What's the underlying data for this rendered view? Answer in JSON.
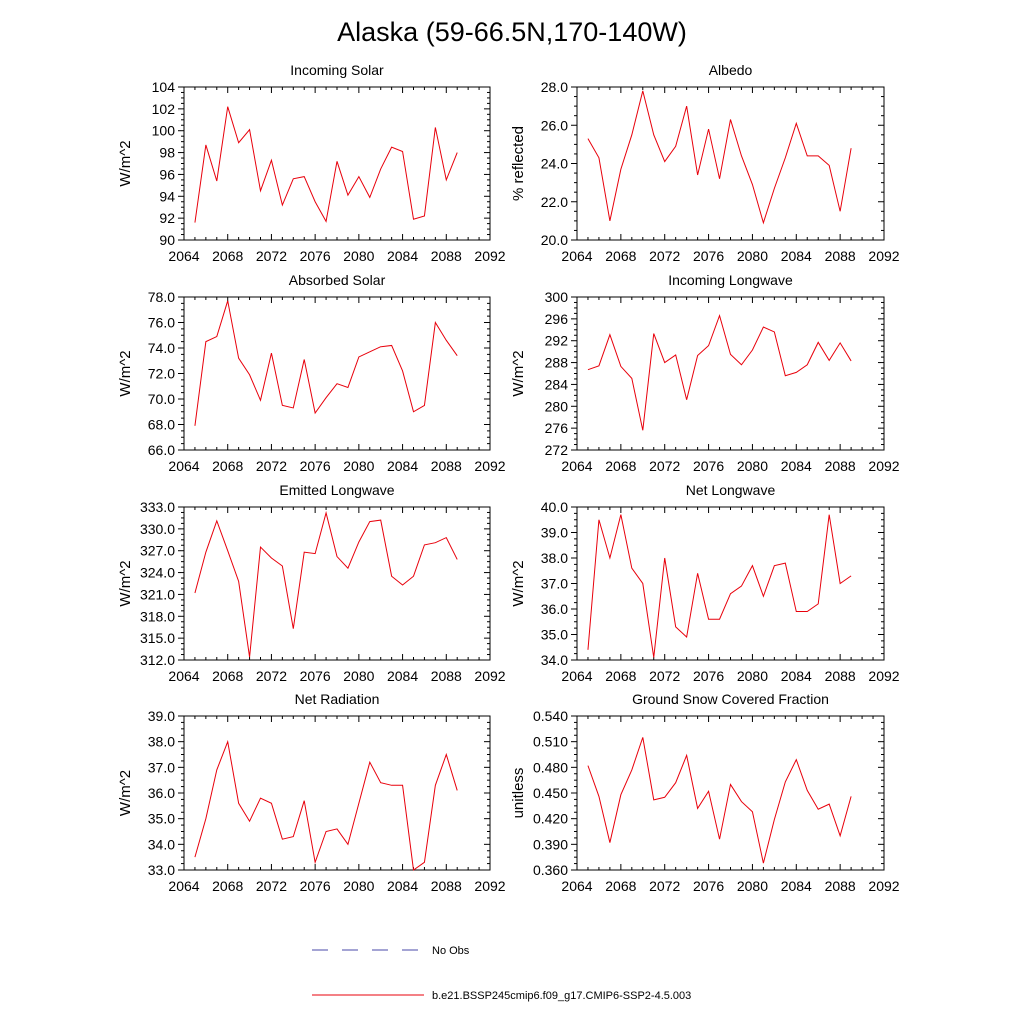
{
  "title": "Alaska (59-66.5N,170-140W)",
  "colors": {
    "series": "#e8000b",
    "obs": "#4a4aa8",
    "axis": "#000000"
  },
  "legend": [
    {
      "label": "No Obs",
      "style": "dashed",
      "color": "#4a4aa8"
    },
    {
      "label": "b.e21.BSSP245cmip6.f09_g17.CMIP6-SSP2-4.5.003",
      "style": "solid",
      "color": "#e8000b"
    }
  ],
  "chart_data": [
    {
      "type": "line",
      "title": "Incoming Solar",
      "ylabel": "W/m^2",
      "xlabel": "",
      "xlim": [
        2064,
        2092
      ],
      "xticks": [
        2064,
        2068,
        2072,
        2076,
        2080,
        2084,
        2088,
        2092
      ],
      "xtick_labels": [
        "2064",
        "2068",
        "2072",
        "2076",
        "2080",
        "2084",
        "2088",
        "2092"
      ],
      "ylim": [
        90,
        104
      ],
      "yticks": [
        90,
        92,
        94,
        96,
        98,
        100,
        102,
        104
      ],
      "ytick_labels": [
        "90",
        "92",
        "94",
        "96",
        "98",
        "100",
        "102",
        "104"
      ],
      "x": [
        2065,
        2066,
        2067,
        2068,
        2069,
        2070,
        2071,
        2072,
        2073,
        2074,
        2075,
        2076,
        2077,
        2078,
        2079,
        2080,
        2081,
        2082,
        2083,
        2084,
        2085,
        2086,
        2087,
        2088,
        2089
      ],
      "series": [
        {
          "name": "b.e21.BSSP245cmip6.f09_g17.CMIP6-SSP2-4.5.003",
          "values": [
            91.6,
            98.7,
            95.4,
            102.2,
            98.9,
            100.1,
            94.5,
            97.3,
            93.2,
            95.6,
            95.8,
            93.5,
            91.7,
            97.2,
            94.1,
            95.8,
            93.9,
            96.5,
            98.5,
            98.1,
            91.9,
            92.2,
            100.3,
            95.5,
            98.0
          ]
        }
      ]
    },
    {
      "type": "line",
      "title": "Albedo",
      "ylabel": "% reflected",
      "xlabel": "",
      "xlim": [
        2064,
        2092
      ],
      "xticks": [
        2064,
        2068,
        2072,
        2076,
        2080,
        2084,
        2088,
        2092
      ],
      "xtick_labels": [
        "2064",
        "2068",
        "2072",
        "2076",
        "2080",
        "2084",
        "2088",
        "2092"
      ],
      "ylim": [
        20,
        28
      ],
      "yticks": [
        20,
        22,
        24,
        26,
        28
      ],
      "ytick_labels": [
        "20.0",
        "22.0",
        "24.0",
        "26.0",
        "28.0"
      ],
      "x": [
        2065,
        2066,
        2067,
        2068,
        2069,
        2070,
        2071,
        2072,
        2073,
        2074,
        2075,
        2076,
        2077,
        2078,
        2079,
        2080,
        2081,
        2082,
        2083,
        2084,
        2085,
        2086,
        2087,
        2088,
        2089
      ],
      "series": [
        {
          "name": "b.e21.BSSP245cmip6.f09_g17.CMIP6-SSP2-4.5.003",
          "values": [
            25.3,
            24.3,
            21.0,
            23.7,
            25.5,
            27.8,
            25.5,
            24.1,
            24.9,
            27.0,
            23.4,
            25.8,
            23.2,
            26.3,
            24.4,
            22.9,
            20.9,
            22.7,
            24.3,
            26.1,
            24.4,
            24.4,
            23.9,
            21.5,
            24.8
          ]
        }
      ]
    },
    {
      "type": "line",
      "title": "Absorbed Solar",
      "ylabel": "W/m^2",
      "xlabel": "",
      "xlim": [
        2064,
        2092
      ],
      "xticks": [
        2064,
        2068,
        2072,
        2076,
        2080,
        2084,
        2088,
        2092
      ],
      "xtick_labels": [
        "2064",
        "2068",
        "2072",
        "2076",
        "2080",
        "2084",
        "2088",
        "2092"
      ],
      "ylim": [
        66,
        78
      ],
      "yticks": [
        66,
        68,
        70,
        72,
        74,
        76,
        78
      ],
      "ytick_labels": [
        "66.0",
        "68.0",
        "70.0",
        "72.0",
        "74.0",
        "76.0",
        "78.0"
      ],
      "x": [
        2065,
        2066,
        2067,
        2068,
        2069,
        2070,
        2071,
        2072,
        2073,
        2074,
        2075,
        2076,
        2077,
        2078,
        2079,
        2080,
        2081,
        2082,
        2083,
        2084,
        2085,
        2086,
        2087,
        2088,
        2089
      ],
      "series": [
        {
          "name": "b.e21.BSSP245cmip6.f09_g17.CMIP6-SSP2-4.5.003",
          "values": [
            67.9,
            74.5,
            74.9,
            77.7,
            73.2,
            71.9,
            69.9,
            73.6,
            69.5,
            69.3,
            73.1,
            68.9,
            70.1,
            71.2,
            70.9,
            73.3,
            73.7,
            74.1,
            74.2,
            72.2,
            69.0,
            69.5,
            76.0,
            74.6,
            73.4
          ]
        }
      ]
    },
    {
      "type": "line",
      "title": "Incoming Longwave",
      "ylabel": "W/m^2",
      "xlabel": "",
      "xlim": [
        2064,
        2092
      ],
      "xticks": [
        2064,
        2068,
        2072,
        2076,
        2080,
        2084,
        2088,
        2092
      ],
      "xtick_labels": [
        "2064",
        "2068",
        "2072",
        "2076",
        "2080",
        "2084",
        "2088",
        "2092"
      ],
      "ylim": [
        272,
        300
      ],
      "yticks": [
        272,
        276,
        280,
        284,
        288,
        292,
        296,
        300
      ],
      "ytick_labels": [
        "272",
        "276",
        "280",
        "284",
        "288",
        "292",
        "296",
        "300"
      ],
      "x": [
        2065,
        2066,
        2067,
        2068,
        2069,
        2070,
        2071,
        2072,
        2073,
        2074,
        2075,
        2076,
        2077,
        2078,
        2079,
        2080,
        2081,
        2082,
        2083,
        2084,
        2085,
        2086,
        2087,
        2088,
        2089
      ],
      "series": [
        {
          "name": "b.e21.BSSP245cmip6.f09_g17.CMIP6-SSP2-4.5.003",
          "values": [
            286.7,
            287.4,
            293.1,
            287.3,
            285.1,
            275.6,
            293.3,
            288.0,
            289.4,
            281.2,
            289.3,
            291.1,
            296.6,
            289.5,
            287.6,
            290.3,
            294.5,
            293.6,
            285.6,
            286.2,
            287.6,
            291.7,
            288.4,
            291.6,
            288.3
          ]
        }
      ]
    },
    {
      "type": "line",
      "title": "Emitted Longwave",
      "ylabel": "W/m^2",
      "xlabel": "",
      "xlim": [
        2064,
        2092
      ],
      "xticks": [
        2064,
        2068,
        2072,
        2076,
        2080,
        2084,
        2088,
        2092
      ],
      "xtick_labels": [
        "2064",
        "2068",
        "2072",
        "2076",
        "2080",
        "2084",
        "2088",
        "2092"
      ],
      "ylim": [
        312,
        333
      ],
      "yticks": [
        312,
        315,
        318,
        321,
        324,
        327,
        330,
        333
      ],
      "ytick_labels": [
        "312.0",
        "315.0",
        "318.0",
        "321.0",
        "324.0",
        "327.0",
        "330.0",
        "333.0"
      ],
      "x": [
        2065,
        2066,
        2067,
        2068,
        2069,
        2070,
        2071,
        2072,
        2073,
        2074,
        2075,
        2076,
        2077,
        2078,
        2079,
        2080,
        2081,
        2082,
        2083,
        2084,
        2085,
        2086,
        2087,
        2088,
        2089
      ],
      "series": [
        {
          "name": "b.e21.BSSP245cmip6.f09_g17.CMIP6-SSP2-4.5.003",
          "values": [
            321.2,
            326.8,
            331.1,
            327.0,
            322.8,
            312.4,
            327.5,
            326.0,
            324.9,
            316.3,
            326.8,
            326.6,
            332.2,
            326.2,
            324.6,
            328.2,
            331.0,
            331.2,
            323.5,
            322.3,
            323.5,
            327.8,
            328.1,
            328.8,
            325.8
          ]
        }
      ]
    },
    {
      "type": "line",
      "title": "Net Longwave",
      "ylabel": "W/m^2",
      "xlabel": "",
      "xlim": [
        2064,
        2092
      ],
      "xticks": [
        2064,
        2068,
        2072,
        2076,
        2080,
        2084,
        2088,
        2092
      ],
      "xtick_labels": [
        "2064",
        "2068",
        "2072",
        "2076",
        "2080",
        "2084",
        "2088",
        "2092"
      ],
      "ylim": [
        34,
        40
      ],
      "yticks": [
        34,
        35,
        36,
        37,
        38,
        39,
        40
      ],
      "ytick_labels": [
        "34.0",
        "35.0",
        "36.0",
        "37.0",
        "38.0",
        "39.0",
        "40.0"
      ],
      "x": [
        2065,
        2066,
        2067,
        2068,
        2069,
        2070,
        2071,
        2072,
        2073,
        2074,
        2075,
        2076,
        2077,
        2078,
        2079,
        2080,
        2081,
        2082,
        2083,
        2084,
        2085,
        2086,
        2087,
        2088,
        2089
      ],
      "series": [
        {
          "name": "b.e21.BSSP245cmip6.f09_g17.CMIP6-SSP2-4.5.003",
          "values": [
            34.4,
            39.5,
            38.0,
            39.7,
            37.6,
            37.0,
            34.1,
            38.0,
            35.3,
            34.9,
            37.4,
            35.6,
            35.6,
            36.6,
            36.9,
            37.7,
            36.5,
            37.7,
            37.8,
            35.9,
            35.9,
            36.2,
            39.7,
            37.0,
            37.3
          ]
        }
      ]
    },
    {
      "type": "line",
      "title": "Net Radiation",
      "ylabel": "W/m^2",
      "xlabel": "",
      "xlim": [
        2064,
        2092
      ],
      "xticks": [
        2064,
        2068,
        2072,
        2076,
        2080,
        2084,
        2088,
        2092
      ],
      "xtick_labels": [
        "2064",
        "2068",
        "2072",
        "2076",
        "2080",
        "2084",
        "2088",
        "2092"
      ],
      "ylim": [
        33,
        39
      ],
      "yticks": [
        33,
        34,
        35,
        36,
        37,
        38,
        39
      ],
      "ytick_labels": [
        "33.0",
        "34.0",
        "35.0",
        "36.0",
        "37.0",
        "38.0",
        "39.0"
      ],
      "x": [
        2065,
        2066,
        2067,
        2068,
        2069,
        2070,
        2071,
        2072,
        2073,
        2074,
        2075,
        2076,
        2077,
        2078,
        2079,
        2080,
        2081,
        2082,
        2083,
        2084,
        2085,
        2086,
        2087,
        2088,
        2089
      ],
      "series": [
        {
          "name": "b.e21.BSSP245cmip6.f09_g17.CMIP6-SSP2-4.5.003",
          "values": [
            33.5,
            35.0,
            36.9,
            38.0,
            35.6,
            34.9,
            35.8,
            35.6,
            34.2,
            34.3,
            35.7,
            33.3,
            34.5,
            34.6,
            34.0,
            35.6,
            37.2,
            36.4,
            36.3,
            36.3,
            33.0,
            33.3,
            36.3,
            37.5,
            36.1
          ]
        }
      ]
    },
    {
      "type": "line",
      "title": "Ground Snow Covered Fraction",
      "ylabel": "unitless",
      "xlabel": "",
      "xlim": [
        2064,
        2092
      ],
      "xticks": [
        2064,
        2068,
        2072,
        2076,
        2080,
        2084,
        2088,
        2092
      ],
      "xtick_labels": [
        "2064",
        "2068",
        "2072",
        "2076",
        "2080",
        "2084",
        "2088",
        "2092"
      ],
      "ylim": [
        0.36,
        0.54
      ],
      "yticks": [
        0.36,
        0.39,
        0.42,
        0.45,
        0.48,
        0.51,
        0.54
      ],
      "ytick_labels": [
        "0.360",
        "0.390",
        "0.420",
        "0.450",
        "0.480",
        "0.510",
        "0.540"
      ],
      "x": [
        2065,
        2066,
        2067,
        2068,
        2069,
        2070,
        2071,
        2072,
        2073,
        2074,
        2075,
        2076,
        2077,
        2078,
        2079,
        2080,
        2081,
        2082,
        2083,
        2084,
        2085,
        2086,
        2087,
        2088,
        2089
      ],
      "series": [
        {
          "name": "b.e21.BSSP245cmip6.f09_g17.CMIP6-SSP2-4.5.003",
          "values": [
            0.482,
            0.446,
            0.392,
            0.448,
            0.477,
            0.515,
            0.442,
            0.445,
            0.462,
            0.494,
            0.432,
            0.452,
            0.396,
            0.46,
            0.44,
            0.428,
            0.368,
            0.419,
            0.463,
            0.489,
            0.453,
            0.431,
            0.437,
            0.4,
            0.446
          ]
        }
      ]
    }
  ]
}
